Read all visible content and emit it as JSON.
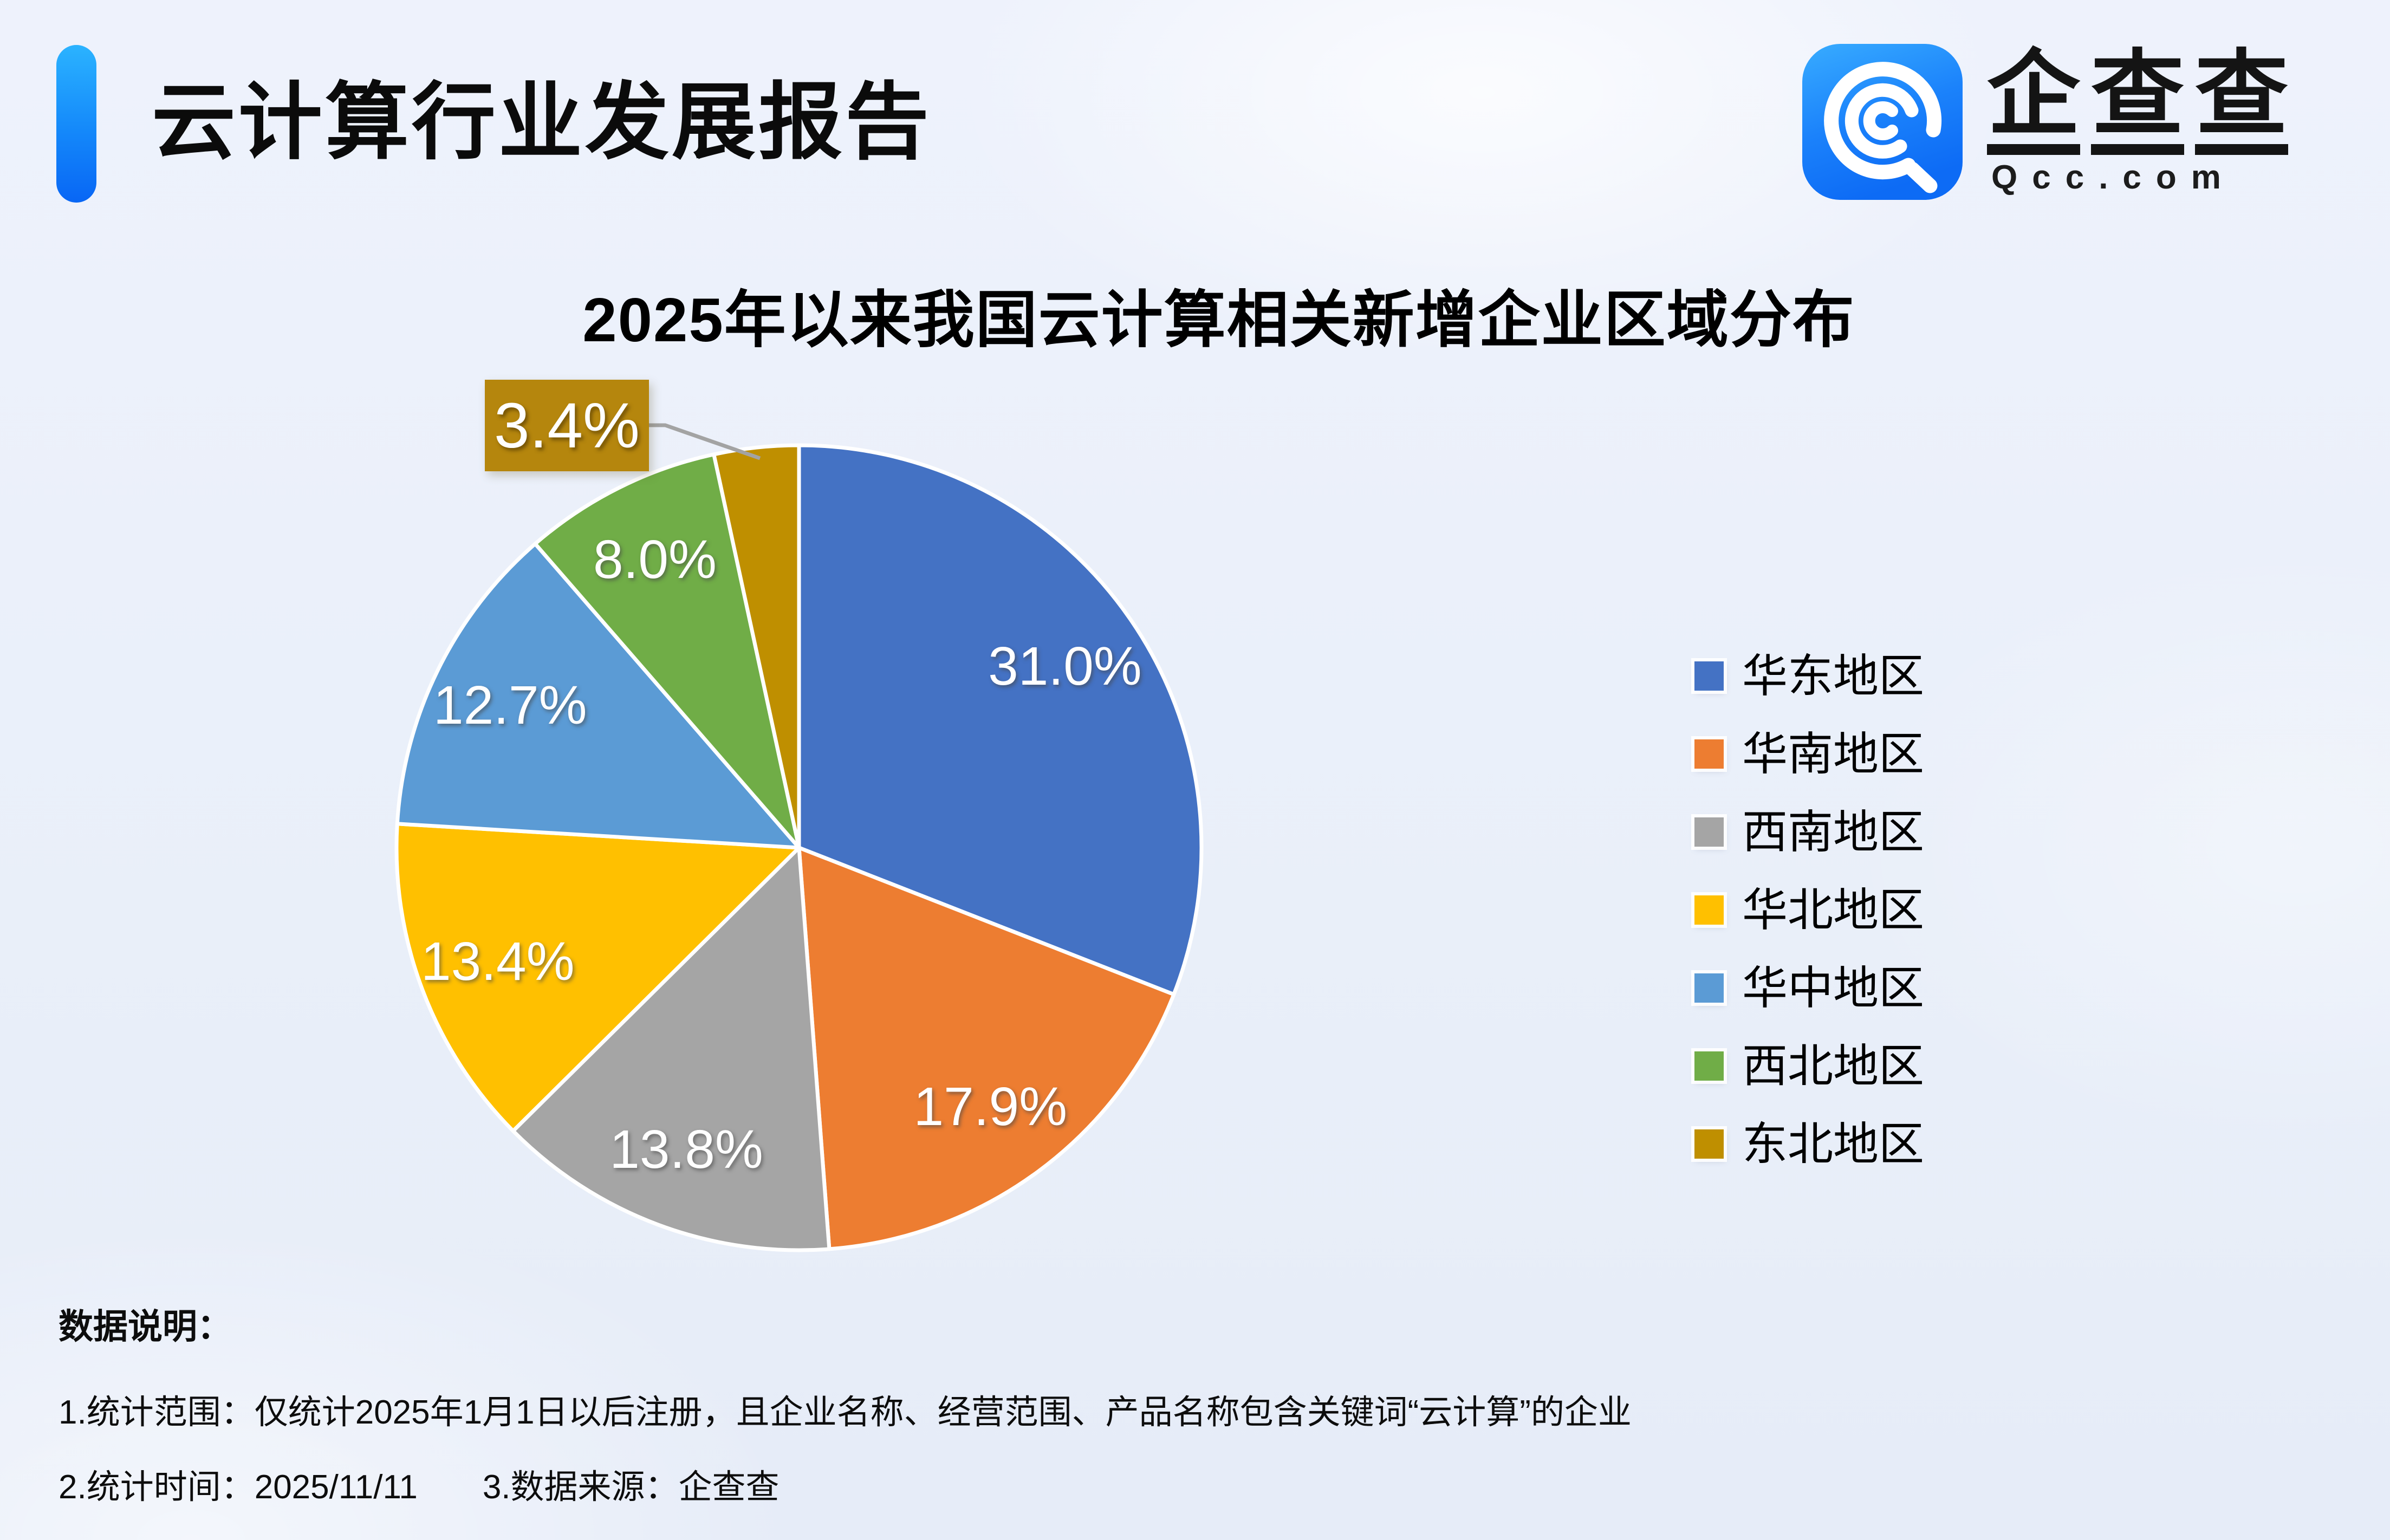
{
  "header": {
    "title": "云计算行业发展报告",
    "accent_color": "#0e7bf8"
  },
  "logo": {
    "icon": "qcc-spiral-icon",
    "icon_color_top": "#35a9ff",
    "icon_color_bottom": "#0d6bf5",
    "chars": [
      "企",
      "查",
      "查"
    ],
    "domain": "Qcc.com"
  },
  "chart_data": {
    "type": "pie",
    "title": "2025年以来我国云计算相关新增企业区域分布",
    "categories": [
      "华东地区",
      "华南地区",
      "西南地区",
      "华北地区",
      "华中地区",
      "西北地区",
      "东北地区"
    ],
    "values": [
      31.0,
      17.9,
      13.8,
      13.4,
      12.7,
      8.0,
      3.4
    ],
    "labels": [
      "31.0%",
      "17.9%",
      "13.8%",
      "13.4%",
      "12.7%",
      "8.0%",
      "3.4%"
    ],
    "unit": "%",
    "colors": [
      "#4472C4",
      "#ED7D31",
      "#A5A5A5",
      "#FFC000",
      "#5B9BD5",
      "#70AD47",
      "#BF8F00"
    ],
    "label_color": "#ffffff",
    "start_angle": 0,
    "direction": "clockwise",
    "legend_position": "right",
    "callout": {
      "index": 6,
      "label": "3.4%",
      "bg": "#B5860D",
      "leader_color": "#A3A3A3"
    }
  },
  "notes": {
    "heading": "数据说明：",
    "line1": "1.统计范围：仅统计2025年1月1日以后注册，且企业名称、经营范围、产品名称包含关键词“云计算”的企业",
    "line2_stat_time": "2.统计时间：2025/11/11",
    "line2_source": "3.数据来源：企查查"
  }
}
